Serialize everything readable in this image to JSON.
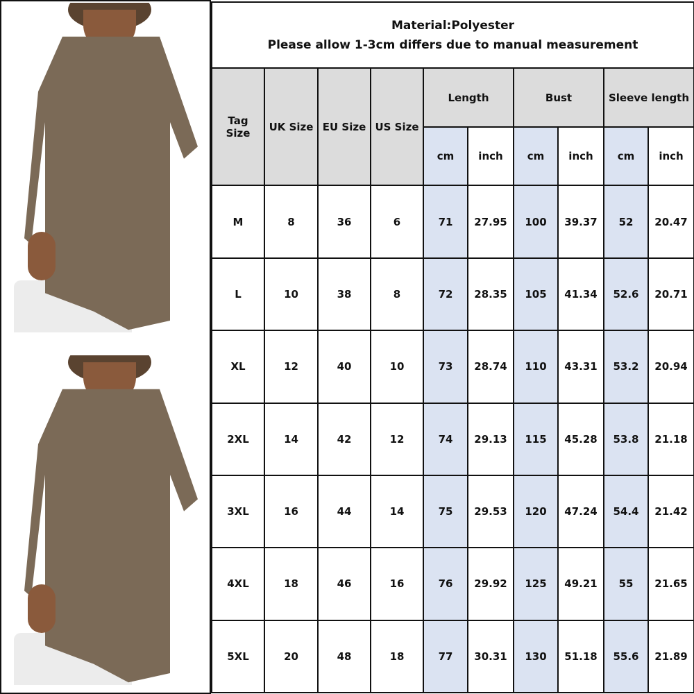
{
  "title": {
    "line1": "Material:Polyester",
    "line2": "Please allow 1-3cm differs due to manual measurement"
  },
  "headers": {
    "tag_size": "Tag Size",
    "uk_size": "UK Size",
    "eu_size": "EU Size",
    "us_size": "US Size",
    "length": "Length",
    "bust": "Bust",
    "sleeve_length": "Sleeve length",
    "units": [
      "cm",
      "inch",
      "cm",
      "inch",
      "cm",
      "inch"
    ]
  },
  "rows": [
    [
      "M",
      "8",
      "36",
      "6",
      "71",
      "27.95",
      "100",
      "39.37",
      "52",
      "20.47"
    ],
    [
      "L",
      "10",
      "38",
      "8",
      "72",
      "28.35",
      "105",
      "41.34",
      "52.6",
      "20.71"
    ],
    [
      "XL",
      "12",
      "40",
      "10",
      "73",
      "28.74",
      "110",
      "43.31",
      "53.2",
      "20.94"
    ],
    [
      "2XL",
      "14",
      "42",
      "12",
      "74",
      "29.13",
      "115",
      "45.28",
      "53.8",
      "21.18"
    ],
    [
      "3XL",
      "16",
      "44",
      "14",
      "75",
      "29.53",
      "120",
      "47.24",
      "54.4",
      "21.42"
    ],
    [
      "4XL",
      "18",
      "46",
      "16",
      "76",
      "29.92",
      "125",
      "49.21",
      "55",
      "21.65"
    ],
    [
      "5XL",
      "20",
      "48",
      "18",
      "77",
      "30.31",
      "130",
      "51.18",
      "55.6",
      "21.89"
    ]
  ],
  "colors": {
    "header_bg": "#dcdcdc",
    "cm_column_bg": "#dbe3f2",
    "garment": "#7b6a57"
  }
}
